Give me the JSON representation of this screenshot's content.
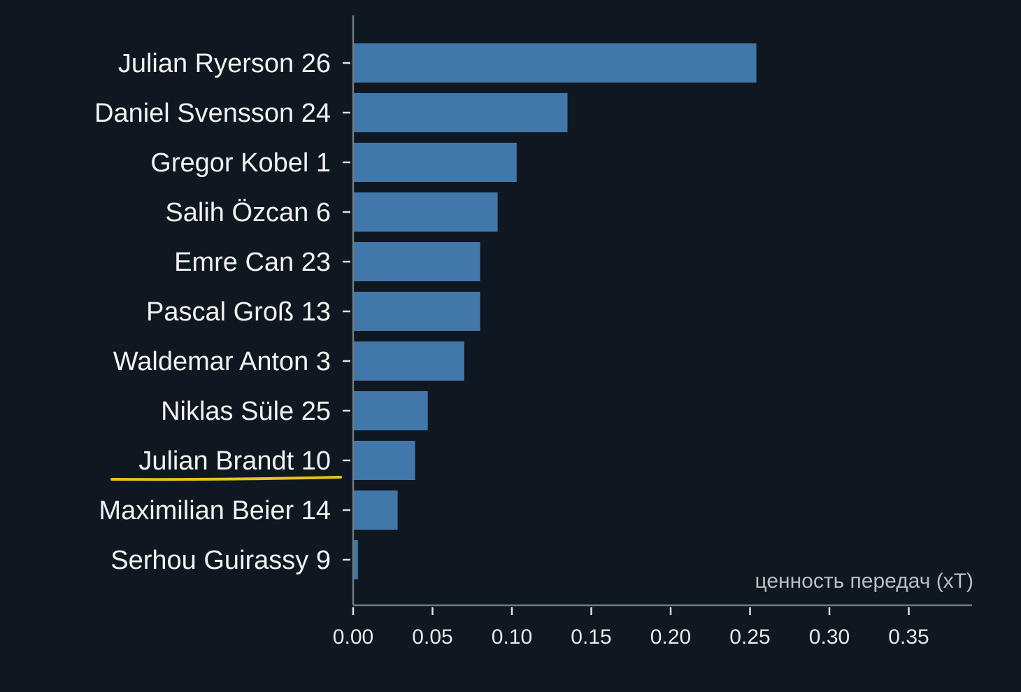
{
  "colors": {
    "background": "#0f1820",
    "bar": "#4178a9",
    "highlight_underline": "#e8c31d"
  },
  "chart_data": {
    "type": "bar",
    "orientation": "horizontal",
    "categories": [
      "Julian Ryerson 26",
      "Daniel Svensson 24",
      "Gregor Kobel 1",
      "Salih Özcan 6",
      "Emre Can 23",
      "Pascal Groß 13",
      "Waldemar Anton 3",
      "Niklas Süle 25",
      "Julian Brandt 10",
      "Maximilian Beier 14",
      "Serhou Guirassy 9"
    ],
    "values": [
      0.254,
      0.135,
      0.103,
      0.091,
      0.08,
      0.08,
      0.07,
      0.047,
      0.039,
      0.028,
      0.003
    ],
    "highlighted_category": "Julian Brandt 10",
    "xlabel": "ценность передач (xT)",
    "xlim": [
      0,
      0.39
    ],
    "xticks": [
      "0.00",
      "0.05",
      "0.10",
      "0.15",
      "0.20",
      "0.25",
      "0.30",
      "0.35"
    ],
    "grid": false,
    "legend": "none"
  }
}
